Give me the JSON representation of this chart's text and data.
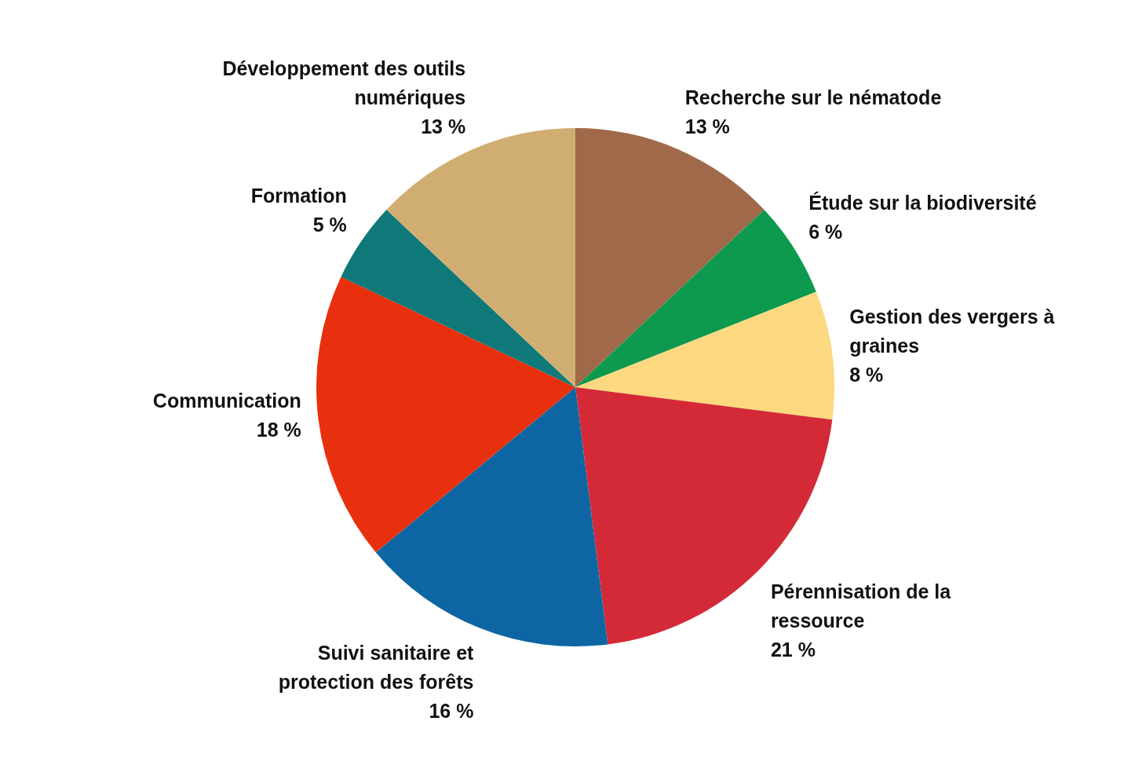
{
  "chart_data": {
    "type": "pie",
    "categories": [
      "Recherche sur le nématode",
      "Étude sur la biodiversité",
      "Gestion des vergers à graines",
      "Pérennisation de la ressource",
      "Suivi sanitaire et protection des forêts",
      "Communication",
      "Formation",
      "Développement des outils numériques"
    ],
    "values": [
      13,
      6,
      8,
      21,
      16,
      18,
      5,
      13
    ],
    "value_labels": [
      "13 %",
      "6 %",
      "8 %",
      "21 %",
      "16 %",
      "18 %",
      "5 %",
      "13 %"
    ],
    "colors": [
      "#a06a4a",
      "#0e9a4e",
      "#fcd980",
      "#d42a38",
      "#0d66a3",
      "#e8300e",
      "#0f7878",
      "#d0ae72"
    ],
    "legend": false
  }
}
